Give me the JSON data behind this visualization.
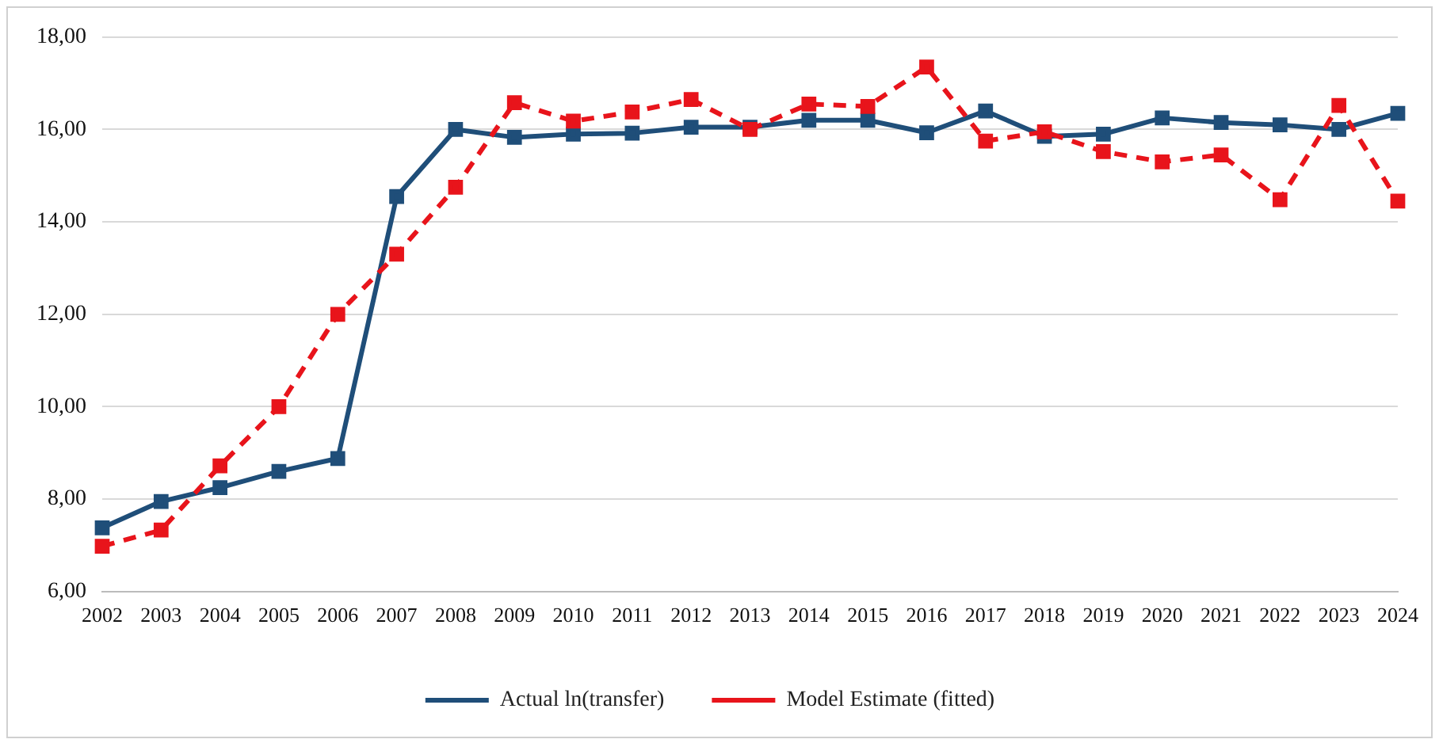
{
  "chart_data": {
    "type": "line",
    "categories": [
      "2002",
      "2003",
      "2004",
      "2005",
      "2006",
      "2007",
      "2008",
      "2009",
      "2010",
      "2011",
      "2012",
      "2013",
      "2014",
      "2015",
      "2016",
      "2017",
      "2018",
      "2019",
      "2020",
      "2021",
      "2022",
      "2023",
      "2024"
    ],
    "series": [
      {
        "name": "Actual ln(transfer)",
        "color": "#1f4e79",
        "line_style": "solid",
        "values": [
          7.38,
          7.95,
          8.25,
          8.6,
          8.88,
          14.55,
          16.0,
          15.83,
          15.9,
          15.92,
          16.05,
          16.05,
          16.2,
          16.2,
          15.93,
          16.4,
          15.85,
          15.9,
          16.25,
          16.15,
          16.1,
          16.0,
          16.35
        ]
      },
      {
        "name": "Model Estimate (fitted)",
        "color": "#e8141b",
        "line_style": "dashed",
        "values": [
          6.98,
          7.33,
          8.72,
          10.0,
          12.0,
          13.3,
          14.75,
          16.58,
          16.18,
          16.38,
          16.65,
          16.0,
          16.55,
          16.5,
          17.35,
          15.75,
          15.95,
          15.52,
          15.3,
          15.45,
          14.48,
          16.52,
          14.45
        ]
      }
    ],
    "ylim": [
      6,
      18
    ],
    "yticks": [
      {
        "value": 6,
        "label": "6,00"
      },
      {
        "value": 8,
        "label": "8,00"
      },
      {
        "value": 10,
        "label": "10,00"
      },
      {
        "value": 12,
        "label": "12,00"
      },
      {
        "value": 14,
        "label": "14,00"
      },
      {
        "value": 16,
        "label": "16,00"
      },
      {
        "value": 18,
        "label": "18,00"
      }
    ],
    "grid": "y",
    "legend": "bottom",
    "marker": "square"
  }
}
